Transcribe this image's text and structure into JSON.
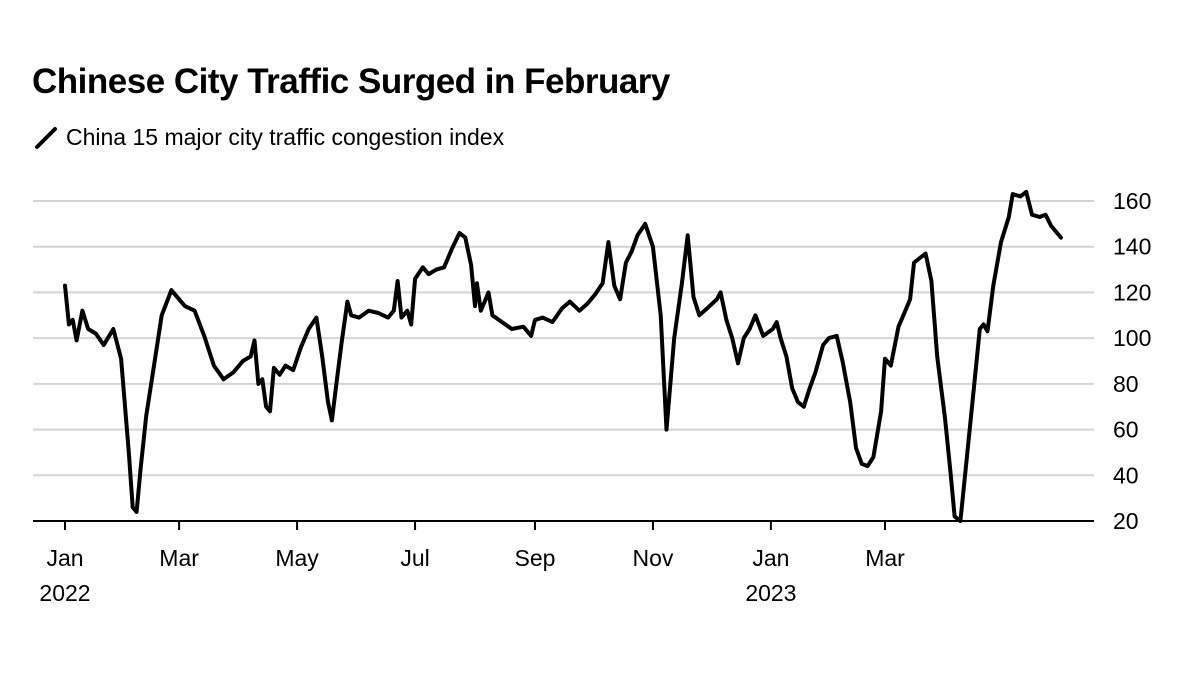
{
  "chart_data": {
    "type": "line",
    "title": "Chinese City Traffic Surged in February",
    "series": [
      {
        "name": "China 15 major city traffic congestion index",
        "color": "#000000",
        "points": [
          [
            "2022-01-01",
            123
          ],
          [
            "2022-01-03",
            106
          ],
          [
            "2022-01-05",
            108
          ],
          [
            "2022-01-07",
            99
          ],
          [
            "2022-01-10",
            112
          ],
          [
            "2022-01-13",
            104
          ],
          [
            "2022-01-17",
            102
          ],
          [
            "2022-01-21",
            97
          ],
          [
            "2022-01-26",
            104
          ],
          [
            "2022-01-30",
            91
          ],
          [
            "2022-02-03",
            50
          ],
          [
            "2022-02-05",
            26
          ],
          [
            "2022-02-07",
            24
          ],
          [
            "2022-02-09",
            42
          ],
          [
            "2022-02-12",
            66
          ],
          [
            "2022-02-16",
            88
          ],
          [
            "2022-02-20",
            110
          ],
          [
            "2022-02-25",
            121
          ],
          [
            "2022-03-01",
            117
          ],
          [
            "2022-03-04",
            114
          ],
          [
            "2022-03-09",
            112
          ],
          [
            "2022-03-14",
            101
          ],
          [
            "2022-03-19",
            88
          ],
          [
            "2022-03-24",
            82
          ],
          [
            "2022-03-29",
            85
          ],
          [
            "2022-04-03",
            90
          ],
          [
            "2022-04-07",
            92
          ],
          [
            "2022-04-09",
            99
          ],
          [
            "2022-04-11",
            80
          ],
          [
            "2022-04-13",
            82
          ],
          [
            "2022-04-15",
            70
          ],
          [
            "2022-04-17",
            68
          ],
          [
            "2022-04-19",
            87
          ],
          [
            "2022-04-22",
            84
          ],
          [
            "2022-04-25",
            88
          ],
          [
            "2022-04-29",
            86
          ],
          [
            "2022-05-03",
            96
          ],
          [
            "2022-05-07",
            104
          ],
          [
            "2022-05-11",
            109
          ],
          [
            "2022-05-14",
            92
          ],
          [
            "2022-05-17",
            72
          ],
          [
            "2022-05-19",
            64
          ],
          [
            "2022-05-21",
            78
          ],
          [
            "2022-05-24",
            98
          ],
          [
            "2022-05-27",
            116
          ],
          [
            "2022-05-29",
            110
          ],
          [
            "2022-06-02",
            109
          ],
          [
            "2022-06-07",
            112
          ],
          [
            "2022-06-12",
            111
          ],
          [
            "2022-06-17",
            109
          ],
          [
            "2022-06-20",
            112
          ],
          [
            "2022-06-22",
            125
          ],
          [
            "2022-06-24",
            109
          ],
          [
            "2022-06-27",
            112
          ],
          [
            "2022-06-29",
            106
          ],
          [
            "2022-07-01",
            126
          ],
          [
            "2022-07-05",
            131
          ],
          [
            "2022-07-08",
            128
          ],
          [
            "2022-07-12",
            130
          ],
          [
            "2022-07-16",
            131
          ],
          [
            "2022-07-20",
            139
          ],
          [
            "2022-07-24",
            146
          ],
          [
            "2022-07-27",
            144
          ],
          [
            "2022-07-30",
            132
          ],
          [
            "2022-08-01",
            114
          ],
          [
            "2022-08-02",
            124
          ],
          [
            "2022-08-04",
            112
          ],
          [
            "2022-08-06",
            116
          ],
          [
            "2022-08-08",
            120
          ],
          [
            "2022-08-10",
            110
          ],
          [
            "2022-08-15",
            107
          ],
          [
            "2022-08-20",
            104
          ],
          [
            "2022-08-26",
            105
          ],
          [
            "2022-08-30",
            101
          ],
          [
            "2022-09-01",
            108
          ],
          [
            "2022-09-05",
            109
          ],
          [
            "2022-09-10",
            107
          ],
          [
            "2022-09-15",
            113
          ],
          [
            "2022-09-19",
            116
          ],
          [
            "2022-09-24",
            112
          ],
          [
            "2022-09-28",
            115
          ],
          [
            "2022-10-02",
            119
          ],
          [
            "2022-10-06",
            124
          ],
          [
            "2022-10-09",
            142
          ],
          [
            "2022-10-12",
            123
          ],
          [
            "2022-10-15",
            117
          ],
          [
            "2022-10-18",
            133
          ],
          [
            "2022-10-21",
            138
          ],
          [
            "2022-10-24",
            145
          ],
          [
            "2022-10-28",
            150
          ],
          [
            "2022-11-01",
            140
          ],
          [
            "2022-11-05",
            110
          ],
          [
            "2022-11-08",
            60
          ],
          [
            "2022-11-12",
            100
          ],
          [
            "2022-11-16",
            124
          ],
          [
            "2022-11-19",
            145
          ],
          [
            "2022-11-22",
            118
          ],
          [
            "2022-11-25",
            110
          ],
          [
            "2022-11-29",
            113
          ],
          [
            "2022-12-04",
            117
          ],
          [
            "2022-12-06",
            120
          ],
          [
            "2022-12-09",
            108
          ],
          [
            "2022-12-12",
            100
          ],
          [
            "2022-12-15",
            89
          ],
          [
            "2022-12-18",
            100
          ],
          [
            "2022-12-21",
            104
          ],
          [
            "2022-12-24",
            110
          ],
          [
            "2022-12-28",
            101
          ],
          [
            "2023-01-02",
            104
          ],
          [
            "2023-01-04",
            107
          ],
          [
            "2023-01-06",
            100
          ],
          [
            "2023-01-09",
            92
          ],
          [
            "2023-01-12",
            78
          ],
          [
            "2023-01-15",
            72
          ],
          [
            "2023-01-18",
            70
          ],
          [
            "2023-01-21",
            78
          ],
          [
            "2023-01-24",
            85
          ],
          [
            "2023-01-28",
            97
          ],
          [
            "2023-01-31",
            100
          ],
          [
            "2023-02-04",
            101
          ],
          [
            "2023-02-07",
            90
          ],
          [
            "2023-02-11",
            72
          ],
          [
            "2023-02-14",
            52
          ],
          [
            "2023-02-17",
            45
          ],
          [
            "2023-02-20",
            44
          ],
          [
            "2023-02-23",
            48
          ],
          [
            "2023-02-27",
            68
          ],
          [
            "2023-03-01",
            91
          ],
          [
            "2023-03-04",
            88
          ],
          [
            "2023-03-08",
            105
          ],
          [
            "2023-03-12",
            113
          ],
          [
            "2023-03-14",
            117
          ],
          [
            "2023-03-16",
            133
          ],
          [
            "2023-03-19",
            135
          ],
          [
            "2023-03-22",
            137
          ],
          [
            "2023-03-25",
            125
          ],
          [
            "2023-03-28",
            92
          ],
          [
            "2023-04-01",
            65
          ],
          [
            "2023-04-04",
            40
          ],
          [
            "2023-04-06",
            22
          ],
          [
            "2023-04-09",
            20
          ],
          [
            "2023-04-12",
            45
          ],
          [
            "2023-04-15",
            70
          ],
          [
            "2023-04-19",
            104
          ],
          [
            "2023-04-21",
            106
          ],
          [
            "2023-04-23",
            103
          ],
          [
            "2023-04-26",
            123
          ],
          [
            "2023-04-30",
            142
          ],
          [
            "2023-05-04",
            153
          ],
          [
            "2023-05-06",
            163
          ],
          [
            "2023-05-10",
            162
          ],
          [
            "2023-05-13",
            164
          ],
          [
            "2023-05-16",
            154
          ],
          [
            "2023-05-20",
            153
          ],
          [
            "2023-05-23",
            154
          ],
          [
            "2023-05-26",
            149
          ],
          [
            "2023-05-29",
            146
          ],
          [
            "2023-05-31",
            144
          ]
        ]
      }
    ],
    "x_ticks": [
      {
        "date": "2022-01-01",
        "label": "Jan",
        "year": "2022"
      },
      {
        "date": "2022-03-01",
        "label": "Mar",
        "year": ""
      },
      {
        "date": "2022-05-01",
        "label": "May",
        "year": ""
      },
      {
        "date": "2022-07-01",
        "label": "Jul",
        "year": ""
      },
      {
        "date": "2022-09-01",
        "label": "Sep",
        "year": ""
      },
      {
        "date": "2022-11-01",
        "label": "Nov",
        "year": ""
      },
      {
        "date": "2023-01-01",
        "label": "Jan",
        "year": "2023"
      },
      {
        "date": "2023-03-01",
        "label": "Mar",
        "year": ""
      }
    ],
    "y_ticks": [
      20,
      40,
      60,
      80,
      100,
      120,
      140,
      160
    ],
    "ylim": [
      20,
      160
    ],
    "grid": true,
    "y_axis_side": "right",
    "xlabel": "",
    "ylabel": ""
  }
}
